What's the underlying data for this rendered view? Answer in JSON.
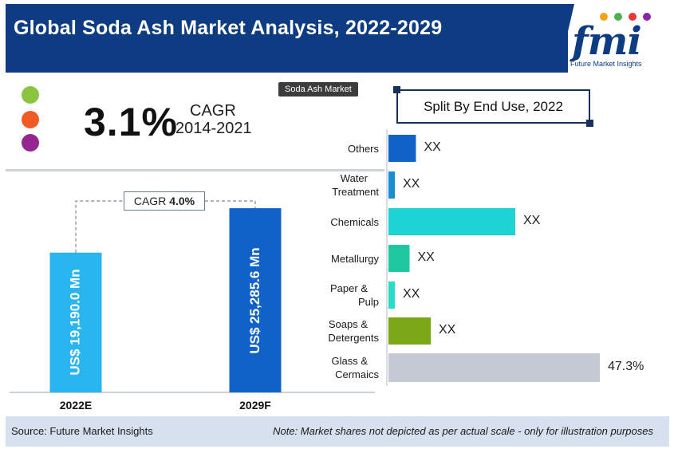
{
  "header": {
    "title": "Global Soda Ash Market Analysis, 2022-2029"
  },
  "logo": {
    "word": "fmi",
    "subtitle": "Future Market Insights",
    "dot_colors": [
      "#f4a21a",
      "#4caf50",
      "#e53935",
      "#8e24aa"
    ]
  },
  "headline": {
    "percent": "3.1%",
    "cagr_label": "CAGR",
    "cagr_years": "2014-2021",
    "dot_colors": [
      "#8bc53f",
      "#f05a24",
      "#93278f"
    ]
  },
  "tooltip": {
    "text": "Soda Ash Market"
  },
  "split_title": "Split By End Use, 2022",
  "footer": {
    "source": "Source: Future Market Insights",
    "note": "Note: Market shares not depicted as per actual scale - only for illustration purposes"
  },
  "colors": {
    "header_bg": "#0e3c82",
    "bar_2022": "#29b5f0",
    "bar_2029": "#1162c8",
    "footer_bg": "#d7e0ee"
  },
  "chart_data": [
    {
      "type": "bar",
      "orientation": "vertical",
      "categories": [
        "2022E",
        "2029F"
      ],
      "values": [
        19190.0,
        25285.6
      ],
      "value_labels": [
        "US$ 19,190.0 Mn",
        "US$ 25,285.6 Mn"
      ],
      "annotation": {
        "prefix": "CAGR",
        "value": "4.0%"
      },
      "ylim": [
        0,
        30000
      ]
    },
    {
      "type": "bar",
      "orientation": "horizontal",
      "title": "Split By End Use, 2022",
      "categories": [
        [
          "Others"
        ],
        [
          "Water",
          "Treatment"
        ],
        [
          "Chemicals"
        ],
        [
          "Metallurgy"
        ],
        [
          "Paper &",
          "Pulp"
        ],
        [
          "Soaps &",
          "Detergents"
        ],
        [
          "Glass &",
          "Cermaics"
        ]
      ],
      "values": [
        13,
        3,
        60,
        10,
        3,
        20,
        100
      ],
      "value_labels": [
        "XX",
        "XX",
        "XX",
        "XX",
        "XX",
        "XX",
        "47.3%"
      ],
      "colors": [
        "#1162c8",
        "#1a8fd0",
        "#1ed3d3",
        "#1fc8a0",
        "#2adbc8",
        "#7aa716",
        "#c5c9d4"
      ]
    }
  ]
}
